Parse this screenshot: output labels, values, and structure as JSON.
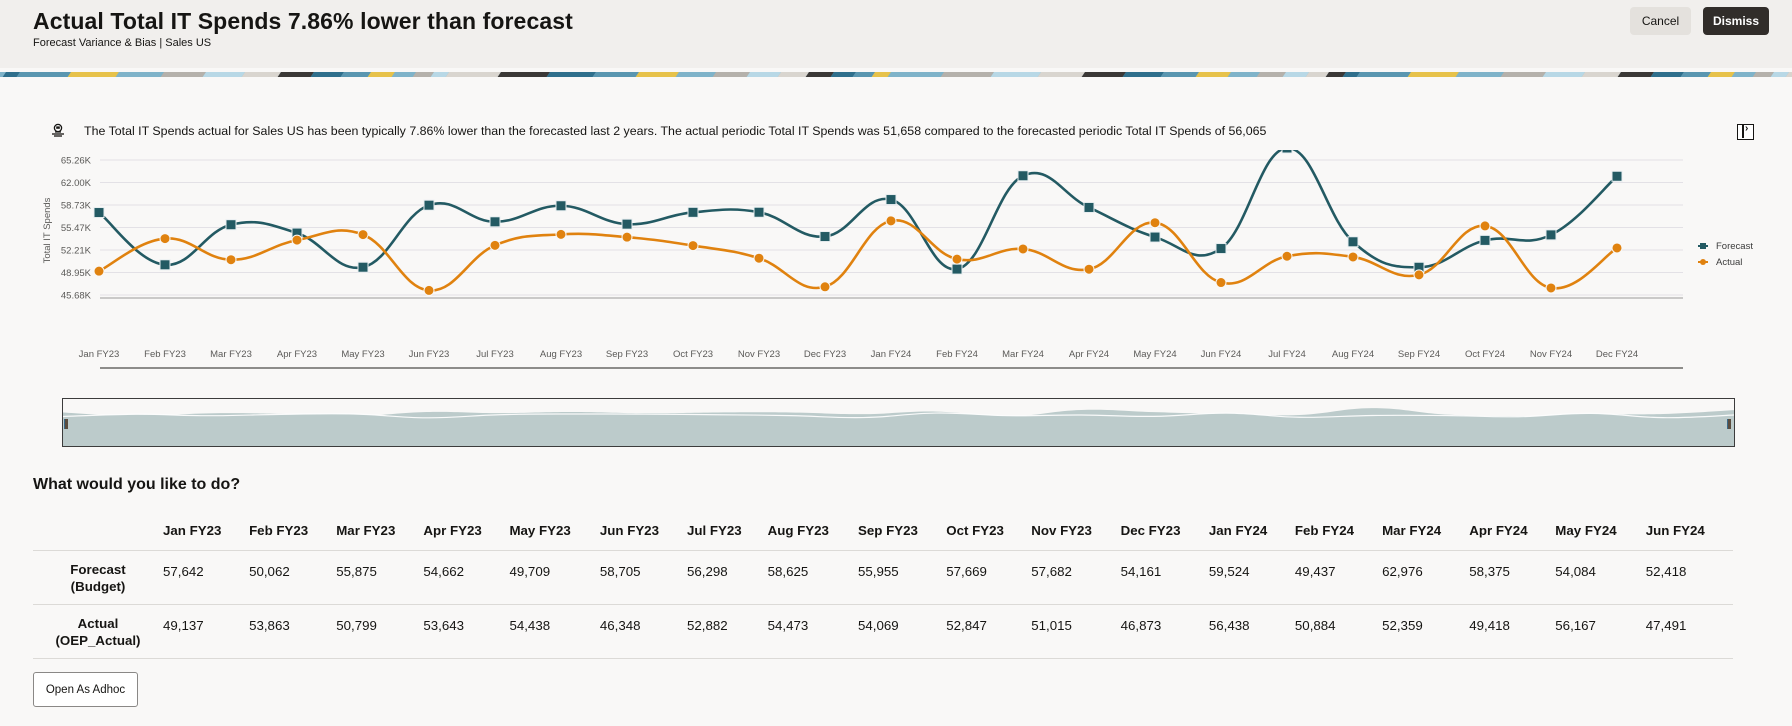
{
  "header": {
    "title": "Actual Total IT Spends 7.86% lower than forecast",
    "subtitle": "Forecast Variance & Bias | Sales US",
    "cancel_label": "Cancel",
    "dismiss_label": "Dismiss"
  },
  "insight": {
    "icon": "insight-icon",
    "text": "The Total IT Spends actual for Sales US has been typically 7.86% lower than the forecasted last 2 years. The actual periodic Total IT Spends was 51,658 compared to the forecasted periodic Total IT Spends of 56,065",
    "panel_toggle_icon": "panel-expand-icon"
  },
  "colors": {
    "forecast": "#235a63",
    "actual": "#e0820f",
    "dismiss_bg": "#312d2a",
    "navigator_fill": "#bccbcb"
  },
  "chart_data": {
    "type": "line",
    "title": "",
    "xlabel": "",
    "ylabel": "Total IT Spends",
    "ylim": [
      45680,
      65260
    ],
    "yticks": [
      "45.68K",
      "48.95K",
      "52.21K",
      "55.47K",
      "58.73K",
      "62.00K",
      "65.26K"
    ],
    "ytick_values": [
      45680,
      48950,
      52210,
      55470,
      58730,
      62000,
      65260
    ],
    "grid": true,
    "legend": "right",
    "categories": [
      "Jan FY23",
      "Feb FY23",
      "Mar FY23",
      "Apr FY23",
      "May FY23",
      "Jun FY23",
      "Jul FY23",
      "Aug FY23",
      "Sep FY23",
      "Oct FY23",
      "Nov FY23",
      "Dec FY23",
      "Jan FY24",
      "Feb FY24",
      "Mar FY24",
      "Apr FY24",
      "May FY24",
      "Jun FY24",
      "Jul FY24",
      "Aug FY24",
      "Sep FY24",
      "Oct FY24",
      "Nov FY24",
      "Dec FY24"
    ],
    "series": [
      {
        "name": "Forecast",
        "marker": "square",
        "values": [
          57642,
          50062,
          55875,
          54662,
          49709,
          58705,
          56298,
          58625,
          55955,
          57669,
          57682,
          54161,
          59524,
          49437,
          62976,
          58375,
          54084,
          52418,
          67000,
          53400,
          49700,
          53600,
          54400,
          62900
        ]
      },
      {
        "name": "Actual",
        "marker": "circle",
        "values": [
          49137,
          53863,
          50799,
          53643,
          54438,
          46348,
          52882,
          54473,
          54069,
          52847,
          51015,
          46873,
          56438,
          50884,
          52359,
          49418,
          56167,
          47491,
          51300,
          51200,
          48600,
          55700,
          46700,
          52500
        ]
      }
    ]
  },
  "actions": {
    "title": "What would you like to do?",
    "adhoc_label": "Open As Adhoc"
  },
  "table": {
    "columns": [
      "Jan FY23",
      "Feb FY23",
      "Mar FY23",
      "Apr FY23",
      "May FY23",
      "Jun FY23",
      "Jul FY23",
      "Aug FY23",
      "Sep FY23",
      "Oct FY23",
      "Nov FY23",
      "Dec FY23",
      "Jan FY24",
      "Feb FY24",
      "Mar FY24",
      "Apr FY24",
      "May FY24",
      "Jun FY24"
    ],
    "rows": [
      {
        "label_line1": "Forecast",
        "label_line2": "(Budget)",
        "values": [
          "57,642",
          "50,062",
          "55,875",
          "54,662",
          "49,709",
          "58,705",
          "56,298",
          "58,625",
          "55,955",
          "57,669",
          "57,682",
          "54,161",
          "59,524",
          "49,437",
          "62,976",
          "58,375",
          "54,084",
          "52,418"
        ]
      },
      {
        "label_line1": "Actual",
        "label_line2": "(OEP_Actual)",
        "values": [
          "49,137",
          "53,863",
          "50,799",
          "53,643",
          "54,438",
          "46,348",
          "52,882",
          "54,473",
          "54,069",
          "52,847",
          "51,015",
          "46,873",
          "56,438",
          "50,884",
          "52,359",
          "49,418",
          "56,167",
          "47,491"
        ]
      }
    ]
  }
}
